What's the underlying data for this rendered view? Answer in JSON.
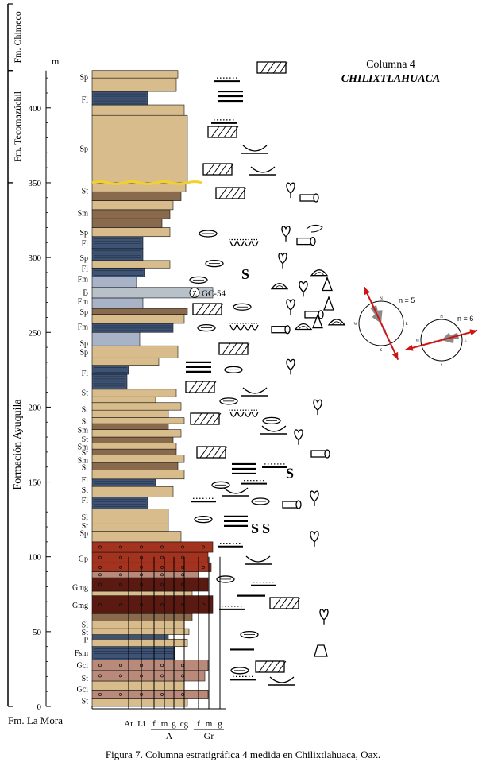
{
  "title": {
    "line1": "Columna 4",
    "line2": "CHILIXTLAHUACA"
  },
  "caption": "Figura 7. Columna estratigráfica 4 medida en Chilixtlahuaca, Oax.",
  "axis": {
    "unit": "m",
    "ticks": [
      0,
      50,
      100,
      150,
      200,
      250,
      300,
      350,
      400
    ],
    "max": 425
  },
  "formations": [
    {
      "name": "Fm. Chimeco",
      "from": 425,
      "to": 460
    },
    {
      "name": "Fm. Tecomazúchil",
      "from": 350,
      "to": 425
    },
    {
      "name": "Formación Ayuquila",
      "from": 0,
      "to": 350
    }
  ],
  "base_label": "Fm. La Mora",
  "facies_labels": [
    {
      "text": "Sp",
      "m": 421
    },
    {
      "text": "Fl",
      "m": 406
    },
    {
      "text": "Sp",
      "m": 373
    },
    {
      "text": "St",
      "m": 345
    },
    {
      "text": "Sm",
      "m": 330
    },
    {
      "text": "Sp",
      "m": 317
    },
    {
      "text": "Fl",
      "m": 310
    },
    {
      "text": "Sp",
      "m": 300
    },
    {
      "text": "Fl",
      "m": 293
    },
    {
      "text": "Fm",
      "m": 286
    },
    {
      "text": "B",
      "m": 277
    },
    {
      "text": "Fm",
      "m": 271
    },
    {
      "text": "Sp",
      "m": 264
    },
    {
      "text": "Fm",
      "m": 254
    },
    {
      "text": "Sp",
      "m": 243
    },
    {
      "text": "Sp",
      "m": 237
    },
    {
      "text": "Fl",
      "m": 223
    },
    {
      "text": "St",
      "m": 210
    },
    {
      "text": "St",
      "m": 199
    },
    {
      "text": "St",
      "m": 191
    },
    {
      "text": "Sm",
      "m": 185
    },
    {
      "text": "St",
      "m": 179
    },
    {
      "text": "Sm",
      "m": 174
    },
    {
      "text": "St",
      "m": 170
    },
    {
      "text": "Sm",
      "m": 165
    },
    {
      "text": "St",
      "m": 160
    },
    {
      "text": "Fl",
      "m": 152
    },
    {
      "text": "St",
      "m": 145
    },
    {
      "text": "Fl",
      "m": 138
    },
    {
      "text": "Sl",
      "m": 127
    },
    {
      "text": "St",
      "m": 121
    },
    {
      "text": "Sp",
      "m": 116
    },
    {
      "text": "Gp",
      "m": 99
    },
    {
      "text": "Gmg",
      "m": 80
    },
    {
      "text": "Gmg",
      "m": 68
    },
    {
      "text": "Sl",
      "m": 55
    },
    {
      "text": "St",
      "m": 50
    },
    {
      "text": "P",
      "m": 45
    },
    {
      "text": "Fsm",
      "m": 36
    },
    {
      "text": "Gci",
      "m": 28
    },
    {
      "text": "St",
      "m": 19
    },
    {
      "text": "Gci",
      "m": 12
    },
    {
      "text": "St",
      "m": 4
    }
  ],
  "grain_axis": {
    "labels": [
      "Ar",
      "Li",
      "f",
      "m",
      "g",
      "cg",
      "f",
      "m",
      "g"
    ],
    "group_a": "A",
    "group_gr": "Gr"
  },
  "sample": "GC-54",
  "sample_symbol": "Z",
  "rose_diagrams": [
    {
      "label": "n = 5",
      "azimuth_deg": 335
    },
    {
      "label": "n = 6",
      "azimuth_deg": 75
    }
  ],
  "compass_labels": [
    "N",
    "E",
    "S",
    "W"
  ],
  "colors": {
    "sandstone": "#d9bc8c",
    "mudstone": "#3f5474",
    "siltstone": "#a9b3c7",
    "breccia": "#b8c0c8",
    "conglomerate_red": "#a3321f",
    "conglomerate_dark": "#5a1a12",
    "gravel_pink": "#b98a7a",
    "dark_sand": "#8a6a4c",
    "contact": "#f2d22a",
    "arrow": "#cc1515"
  }
}
